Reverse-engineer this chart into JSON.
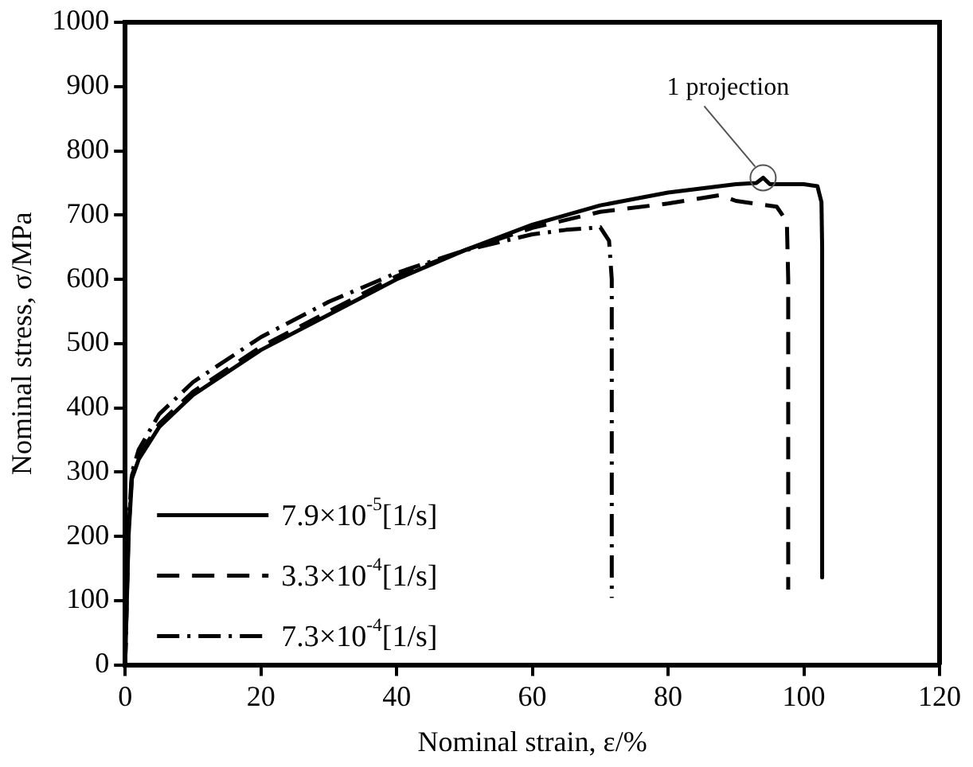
{
  "chart_data": {
    "type": "line",
    "xlabel": "Nominal strain, ε/%",
    "ylabel": "Nominal stress, σ/MPa",
    "xlim": [
      0,
      120
    ],
    "ylim": [
      0,
      1000
    ],
    "xticks": [
      0,
      20,
      40,
      60,
      80,
      100,
      120
    ],
    "yticks": [
      0,
      100,
      200,
      300,
      400,
      500,
      600,
      700,
      800,
      900,
      1000
    ],
    "grid": false,
    "legend": "bottom left",
    "marker": "none",
    "annotations": [
      {
        "text": "1 projection",
        "x": 94,
        "y": 758
      }
    ],
    "series": [
      {
        "name": "7.9×10$^{-5}$[1/s]",
        "color": "#000000",
        "line_style": "solid",
        "x": [
          0,
          0.5,
          1,
          2,
          5,
          10,
          20,
          30,
          40,
          50,
          60,
          70,
          80,
          90,
          93,
          94,
          95,
          100,
          102,
          102.6,
          102.7,
          102.7
        ],
        "values": [
          0,
          200,
          290,
          320,
          370,
          420,
          490,
          545,
          600,
          645,
          685,
          715,
          735,
          748,
          750,
          758,
          748,
          748,
          745,
          720,
          650,
          136
        ]
      },
      {
        "name": "3.3×10$^{-4}$[1/s]",
        "color": "#000000",
        "line_style": "dashed",
        "x": [
          0,
          0.5,
          1,
          2,
          5,
          10,
          20,
          30,
          40,
          50,
          60,
          70,
          80,
          87.7,
          90,
          96,
          97.5,
          97.7,
          97.7
        ],
        "values": [
          0,
          210,
          295,
          325,
          375,
          425,
          495,
          550,
          605,
          645,
          680,
          705,
          718,
          731,
          722,
          713,
          690,
          600,
          117
        ]
      },
      {
        "name": "7.3×10$^{-4}$[1/s]",
        "color": "#000000",
        "line_style": "dashdot",
        "x": [
          0,
          0.5,
          1,
          2,
          5,
          10,
          20,
          30,
          40,
          50,
          60,
          65,
          70,
          71.3,
          71.7,
          71.7
        ],
        "values": [
          0,
          220,
          300,
          335,
          390,
          440,
          510,
          565,
          610,
          645,
          670,
          677,
          681,
          660,
          600,
          104
        ]
      }
    ]
  }
}
